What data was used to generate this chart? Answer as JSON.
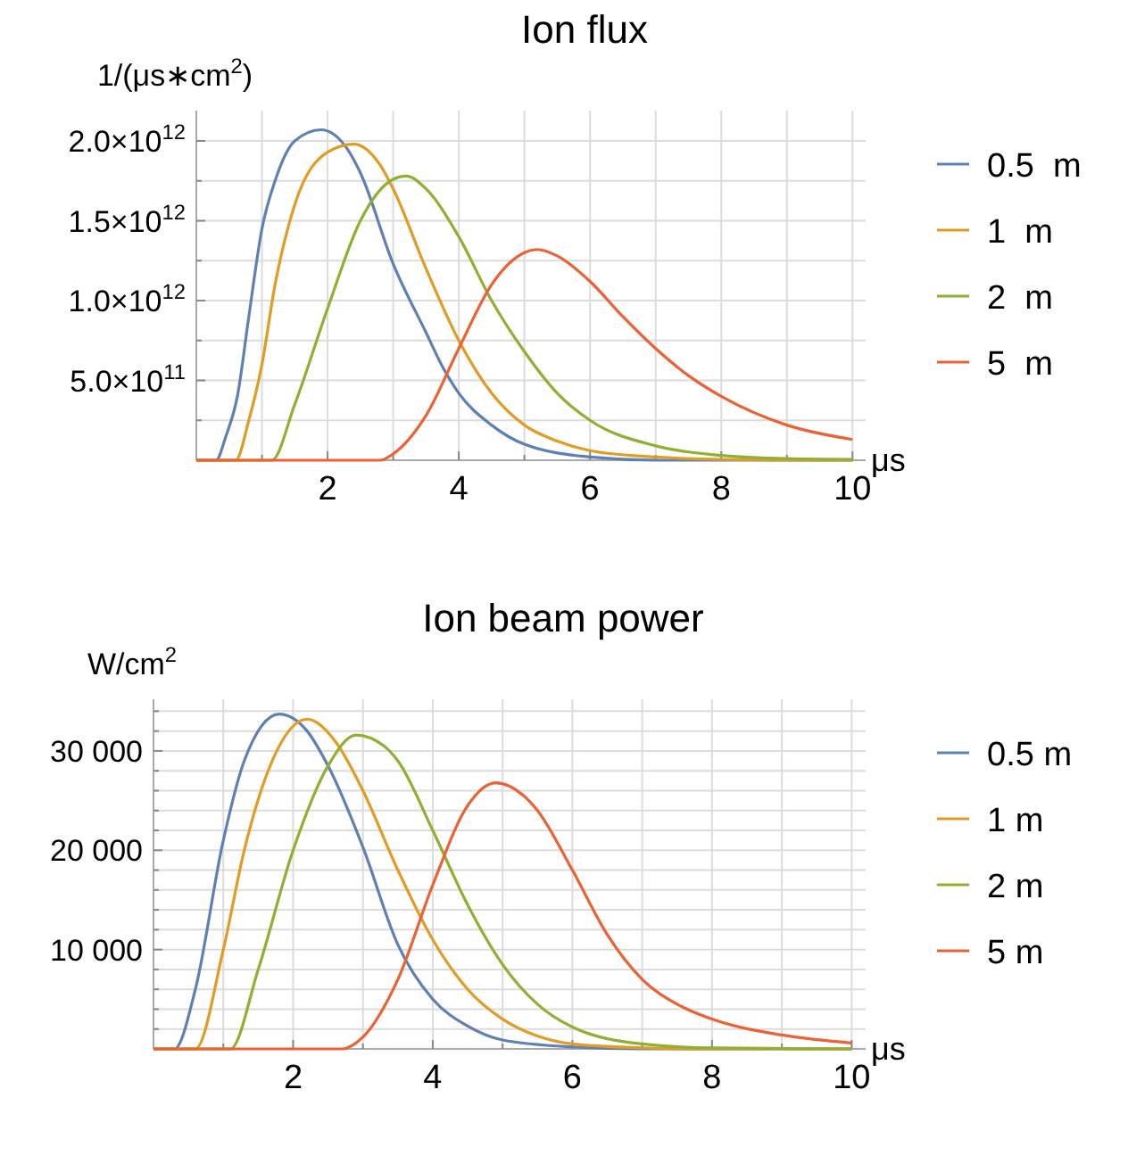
{
  "chart_data": [
    {
      "type": "line",
      "title": "Ion flux",
      "ylabel": "1/(μs∗cm$^{2}$)",
      "xlabel": "μs",
      "xlim": [
        0,
        10.2
      ],
      "ylim": [
        0,
        2190000000000.0
      ],
      "xticks": [
        {
          "value": 1,
          "label": null
        },
        2,
        {
          "value": 3,
          "label": null
        },
        4,
        {
          "value": 5,
          "label": null
        },
        6,
        {
          "value": 7,
          "label": null
        },
        8,
        {
          "value": 9,
          "label": null
        },
        10
      ],
      "yticks": [
        {
          "value": 250000000000.0,
          "label": null
        },
        {
          "value": 500000000000.0,
          "label": "5.0×10$^{11}$"
        },
        {
          "value": 750000000000.0,
          "label": null
        },
        {
          "value": 1000000000000.0,
          "label": "1.0×10$^{12}$"
        },
        {
          "value": 1250000000000.0,
          "label": null
        },
        {
          "value": 1500000000000.0,
          "label": "1.5×10$^{12}$"
        },
        {
          "value": 1750000000000.0,
          "label": null
        },
        {
          "value": 2000000000000.0,
          "label": "2.0×10$^{12}$"
        }
      ],
      "grid": true,
      "legend": "right",
      "series": [
        {
          "name": "0.5  m",
          "color": "#5e81b5",
          "x": [
            0,
            0.3,
            0.45,
            0.63,
            0.8,
            1.0,
            1.2,
            1.5,
            1.9,
            2.3,
            2.5,
            3.0,
            3.5,
            3.76,
            4.0,
            4.5,
            5.0,
            6.0,
            7.0,
            10.0
          ],
          "values": [
            0,
            0,
            150000000000.0,
            410000000000.0,
            900000000000.0,
            1450000000000.0,
            1750000000000.0,
            2000000000000.0,
            2070000000000.0,
            1950000000000.0,
            1800000000000.0,
            1230000000000.0,
            800000000000.0,
            580000000000.0,
            420000000000.0,
            220000000000.0,
            100000000000.0,
            20000000000.0,
            0,
            0
          ]
        },
        {
          "name": "1  m",
          "color": "#e19c24",
          "x": [
            0,
            0.6,
            0.8,
            1.0,
            1.2,
            1.5,
            2.0,
            2.4,
            2.8,
            3.0,
            3.5,
            4.0,
            4.5,
            5.0,
            5.5,
            6.0,
            7.0,
            8.0,
            10.0
          ],
          "values": [
            0,
            0,
            250000000000.0,
            600000000000.0,
            1100000000000.0,
            1600000000000.0,
            1930000000000.0,
            1980000000000.0,
            1850000000000.0,
            1700000000000.0,
            1200000000000.0,
            750000000000.0,
            420000000000.0,
            220000000000.0,
            120000000000.0,
            60000000000.0,
            20000000000.0,
            5000000000.0,
            0
          ]
        },
        {
          "name": "2  m",
          "color": "#8fb032",
          "x": [
            0,
            1.15,
            1.5,
            2.0,
            2.5,
            3.0,
            3.2,
            3.5,
            4.0,
            4.5,
            5.0,
            5.5,
            6.0,
            7.0,
            8.0,
            9.0,
            10.0
          ],
          "values": [
            0,
            0,
            350000000000.0,
            950000000000.0,
            1500000000000.0,
            1760000000000.0,
            1780000000000.0,
            1700000000000.0,
            1400000000000.0,
            1000000000000.0,
            680000000000.0,
            420000000000.0,
            250000000000.0,
            90000000000.0,
            30000000000.0,
            10000000000.0,
            5000000000.0
          ]
        },
        {
          "name": "5  m",
          "color": "#eb6235",
          "x": [
            0,
            2.8,
            3.0,
            3.5,
            4.0,
            4.5,
            5.0,
            5.2,
            5.5,
            6.0,
            6.5,
            7.0,
            7.5,
            8.0,
            9.0,
            10.0
          ],
          "values": [
            0,
            0,
            40000000000.0,
            280000000000.0,
            700000000000.0,
            1100000000000.0,
            1300000000000.0,
            1320000000000.0,
            1280000000000.0,
            1120000000000.0,
            900000000000.0,
            700000000000.0,
            530000000000.0,
            400000000000.0,
            220000000000.0,
            130000000000.0
          ]
        }
      ]
    },
    {
      "type": "line",
      "title": "Ion beam power",
      "ylabel": "W/cm$^{2}$",
      "xlabel": "μs",
      "xlim": [
        0,
        10.2
      ],
      "ylim": [
        0,
        35200
      ],
      "xticks": [
        {
          "value": 1,
          "label": null
        },
        2,
        {
          "value": 3,
          "label": null
        },
        4,
        {
          "value": 5,
          "label": null
        },
        6,
        {
          "value": 7,
          "label": null
        },
        8,
        {
          "value": 9,
          "label": null
        },
        10
      ],
      "yticks": [
        {
          "value": 2000,
          "label": null
        },
        {
          "value": 4000,
          "label": null
        },
        {
          "value": 6000,
          "label": null
        },
        {
          "value": 8000,
          "label": null
        },
        {
          "value": 10000,
          "label": "10 000"
        },
        {
          "value": 12000,
          "label": null
        },
        {
          "value": 14000,
          "label": null
        },
        {
          "value": 16000,
          "label": null
        },
        {
          "value": 18000,
          "label": null
        },
        {
          "value": 20000,
          "label": "20 000"
        },
        {
          "value": 22000,
          "label": null
        },
        {
          "value": 24000,
          "label": null
        },
        {
          "value": 26000,
          "label": null
        },
        {
          "value": 28000,
          "label": null
        },
        {
          "value": 30000,
          "label": "30 000"
        },
        {
          "value": 32000,
          "label": null
        },
        {
          "value": 34000,
          "label": null
        }
      ],
      "grid": true,
      "legend": "right",
      "series": [
        {
          "name": "0.5 m",
          "color": "#5e81b5",
          "x": [
            0,
            0.3,
            0.6,
            1.0,
            1.3,
            1.8,
            2.2,
            2.5,
            3.0,
            3.5,
            4.0,
            4.5,
            5.0,
            6.0,
            7.0,
            10.0
          ],
          "values": [
            0,
            0,
            6000,
            21000,
            29000,
            33700,
            32000,
            28500,
            20300,
            10500,
            5000,
            2300,
            900,
            200,
            0,
            0
          ]
        },
        {
          "name": "1 m",
          "color": "#e19c24",
          "x": [
            0,
            0.6,
            1.0,
            1.3,
            1.7,
            2.2,
            2.6,
            3.0,
            3.5,
            4.0,
            4.5,
            5.0,
            5.5,
            6.0,
            7.0,
            8.0,
            10.0
          ],
          "values": [
            0,
            0,
            10000,
            20000,
            29000,
            33200,
            31000,
            26000,
            18000,
            11000,
            6000,
            3000,
            1300,
            500,
            100,
            0,
            0
          ]
        },
        {
          "name": "2 m",
          "color": "#8fb032",
          "x": [
            0,
            1.1,
            1.5,
            2.0,
            2.5,
            2.9,
            3.3,
            3.5,
            4.0,
            4.5,
            5.0,
            5.5,
            6.0,
            7.0,
            8.0,
            10.0
          ],
          "values": [
            0,
            0,
            8000,
            20000,
            28500,
            31600,
            30500,
            29000,
            22000,
            14500,
            8500,
            4500,
            2200,
            500,
            100,
            0
          ]
        },
        {
          "name": "5 m",
          "color": "#eb6235",
          "x": [
            0,
            2.7,
            3.0,
            3.5,
            4.0,
            4.5,
            4.9,
            5.3,
            5.5,
            6.0,
            6.5,
            7.0,
            7.5,
            8.0,
            9.0,
            10.0
          ],
          "values": [
            0,
            0,
            1200,
            7000,
            16500,
            24500,
            26800,
            25500,
            24000,
            18000,
            11500,
            7000,
            4500,
            3000,
            1400,
            600
          ]
        }
      ]
    }
  ]
}
